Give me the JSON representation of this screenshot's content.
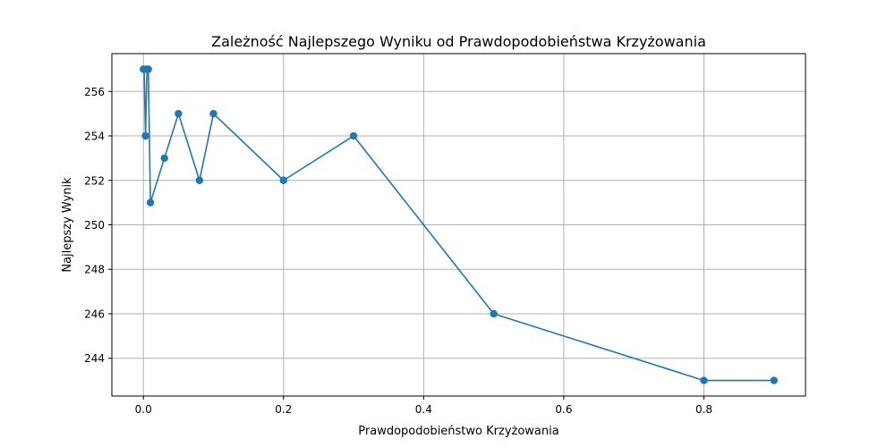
{
  "chart_data": {
    "type": "line",
    "title": "Zależność Najlepszego Wyniku od Prawdopodobieństwa Krzyżowania",
    "xlabel": "Prawdopodobieństwo Krzyżowania",
    "ylabel": "Najlepszy Wynik",
    "xlim": [
      -0.045,
      0.945
    ],
    "ylim": [
      242.3,
      257.7
    ],
    "xticks": [
      0.0,
      0.2,
      0.4,
      0.6,
      0.8
    ],
    "xtick_labels": [
      "0.0",
      "0.2",
      "0.4",
      "0.6",
      "0.8"
    ],
    "yticks": [
      244,
      246,
      248,
      250,
      252,
      254,
      256
    ],
    "ytick_labels": [
      "244",
      "246",
      "248",
      "250",
      "252",
      "254",
      "256"
    ],
    "grid": true,
    "color": "#1f77b4",
    "series": [
      {
        "x": [
          0.0,
          0.001,
          0.003,
          0.005,
          0.007,
          0.01,
          0.03,
          0.05,
          0.08,
          0.1,
          0.2,
          0.3,
          0.5,
          0.8,
          0.9
        ],
        "y": [
          257,
          257,
          254,
          257,
          257,
          251,
          253,
          255,
          252,
          255,
          252,
          254,
          246,
          243,
          243
        ]
      }
    ]
  }
}
